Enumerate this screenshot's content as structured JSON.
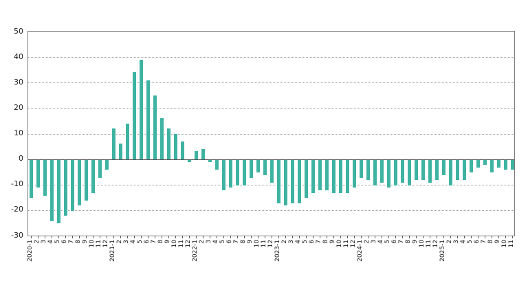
{
  "chart_data": {
    "type": "bar",
    "title": "",
    "xlabel": "",
    "ylabel": "",
    "legend": "none",
    "grid": "horizontal dotted",
    "ylim": [
      -30,
      50
    ],
    "y_ticks": [
      50,
      40,
      30,
      20,
      10,
      0,
      -10,
      -20,
      -30
    ],
    "bar_color": "#3EB3A2",
    "axis_color": "#7a7a7a",
    "categories": [
      "2020-1",
      "2",
      "3",
      "4",
      "5",
      "6",
      "7",
      "8",
      "9",
      "10",
      "11",
      "12",
      "2021-1",
      "2",
      "3",
      "4",
      "5",
      "6",
      "7",
      "8",
      "9",
      "10",
      "11",
      "12",
      "2022-1",
      "2",
      "3",
      "4",
      "5",
      "6",
      "7",
      "8",
      "9",
      "10",
      "11",
      "12",
      "2023-1",
      "2",
      "3",
      "4",
      "5",
      "6",
      "7",
      "8",
      "9",
      "10",
      "11",
      "12",
      "2024-1",
      "2",
      "3",
      "4",
      "5",
      "6",
      "7",
      "8",
      "9",
      "10",
      "11",
      "12",
      "2025-1",
      "2",
      "3",
      "4",
      "5",
      "6",
      "7",
      "8",
      "9",
      "10",
      "11"
    ],
    "values": [
      -15,
      -11,
      -14,
      -24,
      -25,
      -22,
      -20,
      -18,
      -16,
      -13,
      -7,
      -4,
      12,
      6,
      14,
      34,
      39,
      31,
      25,
      16,
      12,
      10,
      7,
      -1,
      3,
      4,
      -1,
      -4,
      -12,
      -11,
      -10,
      -10,
      -7,
      -5,
      -6,
      -9,
      -17,
      -18,
      -17,
      -17,
      -15,
      -13,
      -12,
      -12,
      -13,
      -13,
      -13,
      -11,
      -7,
      -8,
      -10,
      -9,
      -11,
      -10,
      -9,
      -10,
      -8,
      -8,
      -9,
      -8,
      -6,
      -10,
      -8,
      -8,
      -5,
      -3,
      -2,
      -5,
      -3,
      -4,
      -4
    ]
  }
}
